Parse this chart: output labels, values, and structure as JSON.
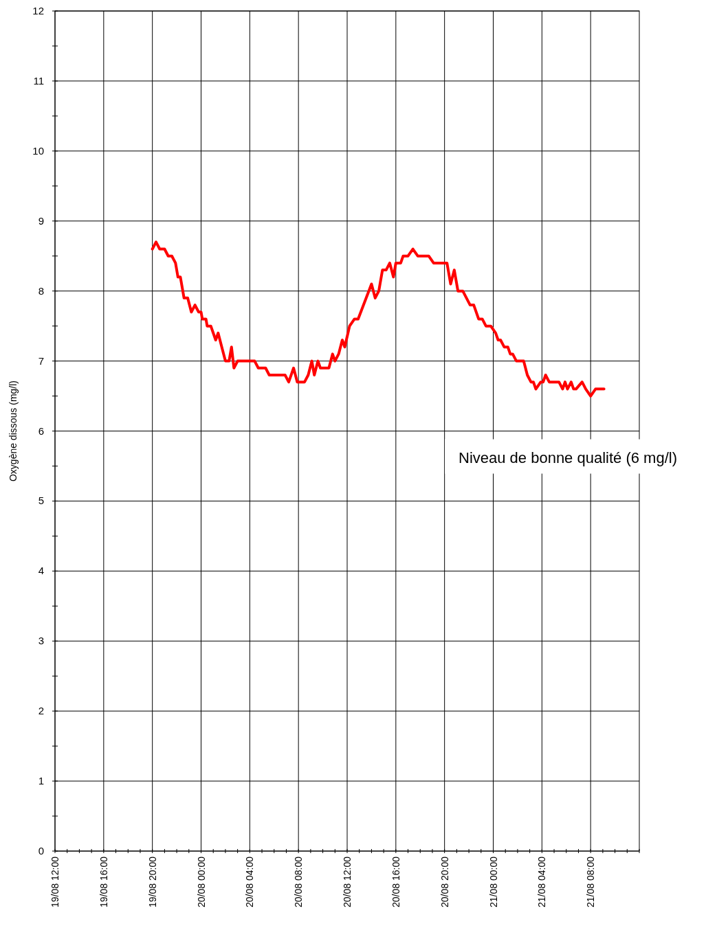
{
  "chart_data": {
    "type": "line",
    "ylabel": "Oxygène dissous (mg/l)",
    "annotations": [
      "Niveau de bonne qualité (6 mg/l)"
    ],
    "grid": true,
    "marker": "none",
    "line_style": "solid",
    "xlim": [
      "--08-19T12:00",
      "--08-21T12:00"
    ],
    "ylim": [
      0,
      12
    ],
    "xticks": [
      {
        "value": "--08-19T12:00",
        "label": "19/08 12:00"
      },
      {
        "value": "--08-19T13:00",
        "label": null
      },
      {
        "value": "--08-19T14:00",
        "label": null
      },
      {
        "value": "--08-19T15:00",
        "label": null
      },
      {
        "value": "--08-19T16:00",
        "label": "19/08 16:00"
      },
      {
        "value": "--08-19T17:00",
        "label": null
      },
      {
        "value": "--08-19T18:00",
        "label": null
      },
      {
        "value": "--08-19T19:00",
        "label": null
      },
      {
        "value": "--08-19T20:00",
        "label": "19/08 20:00"
      },
      {
        "value": "--08-19T21:00",
        "label": null
      },
      {
        "value": "--08-19T22:00",
        "label": null
      },
      {
        "value": "--08-19T23:00",
        "label": null
      },
      {
        "value": "--08-20T00:00",
        "label": "20/08 00:00"
      },
      {
        "value": "--08-20T01:00",
        "label": null
      },
      {
        "value": "--08-20T02:00",
        "label": null
      },
      {
        "value": "--08-20T03:00",
        "label": null
      },
      {
        "value": "--08-20T04:00",
        "label": "20/08 04:00"
      },
      {
        "value": "--08-20T05:00",
        "label": null
      },
      {
        "value": "--08-20T06:00",
        "label": null
      },
      {
        "value": "--08-20T07:00",
        "label": null
      },
      {
        "value": "--08-20T08:00",
        "label": "20/08 08:00"
      },
      {
        "value": "--08-20T09:00",
        "label": null
      },
      {
        "value": "--08-20T10:00",
        "label": null
      },
      {
        "value": "--08-20T11:00",
        "label": null
      },
      {
        "value": "--08-20T12:00",
        "label": "20/08 12:00"
      },
      {
        "value": "--08-20T13:00",
        "label": null
      },
      {
        "value": "--08-20T14:00",
        "label": null
      },
      {
        "value": "--08-20T15:00",
        "label": null
      },
      {
        "value": "--08-20T16:00",
        "label": "20/08 16:00"
      },
      {
        "value": "--08-20T17:00",
        "label": null
      },
      {
        "value": "--08-20T18:00",
        "label": null
      },
      {
        "value": "--08-20T19:00",
        "label": null
      },
      {
        "value": "--08-20T20:00",
        "label": "20/08 20:00"
      },
      {
        "value": "--08-20T21:00",
        "label": null
      },
      {
        "value": "--08-20T22:00",
        "label": null
      },
      {
        "value": "--08-20T23:00",
        "label": null
      },
      {
        "value": "--08-21T00:00",
        "label": "21/08 00:00"
      },
      {
        "value": "--08-21T01:00",
        "label": null
      },
      {
        "value": "--08-21T02:00",
        "label": null
      },
      {
        "value": "--08-21T03:00",
        "label": null
      },
      {
        "value": "--08-21T04:00",
        "label": "21/08 04:00"
      },
      {
        "value": "--08-21T05:00",
        "label": null
      },
      {
        "value": "--08-21T06:00",
        "label": null
      },
      {
        "value": "--08-21T07:00",
        "label": null
      },
      {
        "value": "--08-21T08:00",
        "label": "21/08 08:00"
      },
      {
        "value": "--08-21T09:00",
        "label": null
      },
      {
        "value": "--08-21T10:00",
        "label": null
      },
      {
        "value": "--08-21T11:00",
        "label": null
      },
      {
        "value": "--08-21T12:00",
        "label": null
      }
    ],
    "yticks": [
      0,
      {
        "value": 0.5,
        "label": null
      },
      1,
      {
        "value": 1.5,
        "label": null
      },
      2,
      {
        "value": 2.5,
        "label": null
      },
      3,
      {
        "value": 3.5,
        "label": null
      },
      4,
      {
        "value": 4.5,
        "label": null
      },
      5,
      {
        "value": 5.5,
        "label": null
      },
      6,
      {
        "value": 6.5,
        "label": null
      },
      7,
      {
        "value": 7.5,
        "label": null
      },
      8,
      {
        "value": 8.5,
        "label": null
      },
      9,
      {
        "value": 9.5,
        "label": null
      },
      10,
      {
        "value": 10.5,
        "label": null
      },
      11,
      {
        "value": 11.5,
        "label": null
      },
      12
    ],
    "series": [
      {
        "color": "#ff0000",
        "x": [
          "--08-19T20:00",
          "--08-19T20:18",
          "--08-19T20:36",
          "--08-19T21:00",
          "--08-19T21:18",
          "--08-19T21:36",
          "--08-19T21:54",
          "--08-19T22:06",
          "--08-19T22:18",
          "--08-19T22:36",
          "--08-19T22:54",
          "--08-19T23:12",
          "--08-19T23:30",
          "--08-19T23:48",
          "--08-20T00:00",
          "--08-20T00:06",
          "--08-20T00:24",
          "--08-20T00:30",
          "--08-20T00:48",
          "--08-20T01:12",
          "--08-20T01:24",
          "--08-20T01:42",
          "--08-20T02:00",
          "--08-20T02:18",
          "--08-20T02:30",
          "--08-20T02:42",
          "--08-20T03:00",
          "--08-20T03:24",
          "--08-20T04:24",
          "--08-20T04:42",
          "--08-20T05:18",
          "--08-20T05:36",
          "--08-20T06:54",
          "--08-20T07:12",
          "--08-20T07:36",
          "--08-20T07:54",
          "--08-20T08:30",
          "--08-20T08:48",
          "--08-20T09:06",
          "--08-20T09:18",
          "--08-20T09:36",
          "--08-20T09:48",
          "--08-20T10:00",
          "--08-20T10:30",
          "--08-20T10:48",
          "--08-20T11:00",
          "--08-20T11:18",
          "--08-20T11:36",
          "--08-20T11:48",
          "--08-20T12:12",
          "--08-20T12:36",
          "--08-20T12:54",
          "--08-20T14:00",
          "--08-20T14:18",
          "--08-20T14:36",
          "--08-20T14:54",
          "--08-20T15:12",
          "--08-20T15:30",
          "--08-20T15:48",
          "--08-20T16:00",
          "--08-20T16:24",
          "--08-20T16:36",
          "--08-20T17:00",
          "--08-20T17:24",
          "--08-20T17:48",
          "--08-20T18:42",
          "--08-20T19:06",
          "--08-20T20:12",
          "--08-20T20:30",
          "--08-20T20:48",
          "--08-20T21:06",
          "--08-20T21:30",
          "--08-20T22:06",
          "--08-20T22:24",
          "--08-20T22:48",
          "--08-20T23:06",
          "--08-20T23:24",
          "--08-20T23:48",
          "--08-21T00:12",
          "--08-21T00:24",
          "--08-21T00:36",
          "--08-21T00:54",
          "--08-21T01:12",
          "--08-21T01:24",
          "--08-21T01:36",
          "--08-21T01:54",
          "--08-21T02:30",
          "--08-21T02:48",
          "--08-21T03:06",
          "--08-21T03:18",
          "--08-21T03:30",
          "--08-21T03:54",
          "--08-21T04:06",
          "--08-21T04:18",
          "--08-21T04:36",
          "--08-21T05:24",
          "--08-21T05:42",
          "--08-21T05:54",
          "--08-21T06:06",
          "--08-21T06:24",
          "--08-21T06:36",
          "--08-21T06:48",
          "--08-21T07:18",
          "--08-21T07:36",
          "--08-21T08:00",
          "--08-21T08:24",
          "--08-21T09:06"
        ],
        "values": [
          8.6,
          8.7,
          8.6,
          8.6,
          8.5,
          8.5,
          8.4,
          8.2,
          8.2,
          7.9,
          7.9,
          7.7,
          7.8,
          7.7,
          7.7,
          7.6,
          7.6,
          7.5,
          7.5,
          7.3,
          7.4,
          7.2,
          7.0,
          7.0,
          7.2,
          6.9,
          7.0,
          7.0,
          7.0,
          6.9,
          6.9,
          6.8,
          6.8,
          6.7,
          6.9,
          6.7,
          6.7,
          6.8,
          7.0,
          6.8,
          7.0,
          6.9,
          6.9,
          6.9,
          7.1,
          7.0,
          7.1,
          7.3,
          7.2,
          7.5,
          7.6,
          7.6,
          8.1,
          7.9,
          8.0,
          8.3,
          8.3,
          8.4,
          8.2,
          8.4,
          8.4,
          8.5,
          8.5,
          8.6,
          8.5,
          8.5,
          8.4,
          8.4,
          8.1,
          8.3,
          8.0,
          8.0,
          7.8,
          7.8,
          7.6,
          7.6,
          7.5,
          7.5,
          7.4,
          7.3,
          7.3,
          7.2,
          7.2,
          7.1,
          7.1,
          7.0,
          7.0,
          6.8,
          6.7,
          6.7,
          6.6,
          6.7,
          6.7,
          6.8,
          6.7,
          6.7,
          6.6,
          6.7,
          6.6,
          6.7,
          6.6,
          6.6,
          6.7,
          6.6,
          6.5,
          6.6,
          6.6
        ]
      }
    ]
  }
}
